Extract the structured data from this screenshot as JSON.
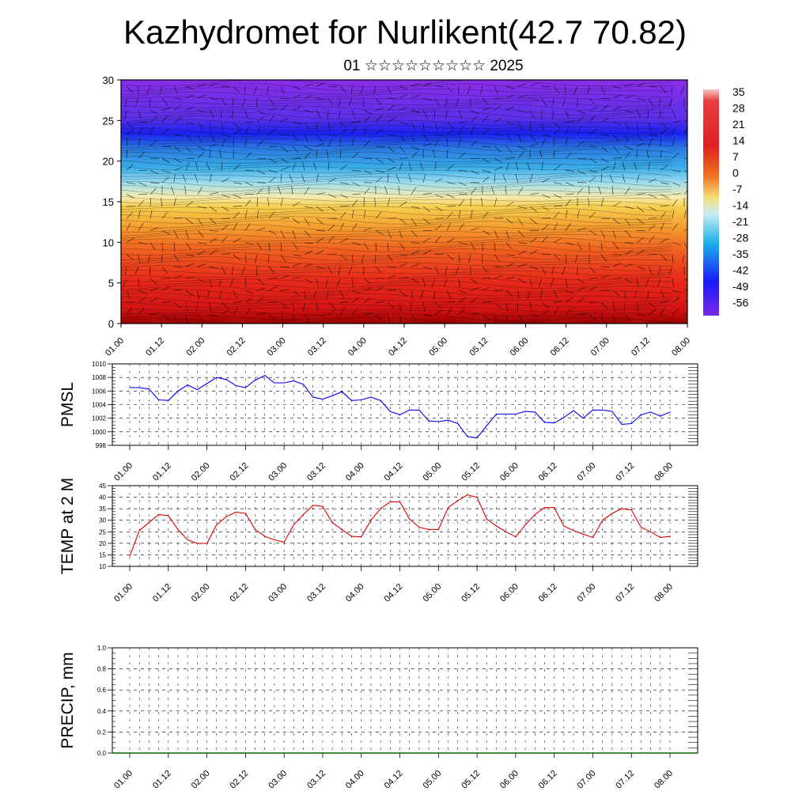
{
  "title": "Kazhydromet for Nurlikent(42.7 70.82)",
  "subtitle": "01 ☆☆☆☆☆☆☆☆☆ 2025",
  "time_labels": [
    "01.00",
    "01.12",
    "02.00",
    "02.12",
    "03.00",
    "03.12",
    "04.00",
    "04.12",
    "05.00",
    "05.12",
    "06.00",
    "06.12",
    "07.00",
    "07.12",
    "08.00"
  ],
  "colorbar": {
    "labels": [
      "35",
      "28",
      "21",
      "14",
      "7",
      "0",
      "-7",
      "-14",
      "-21",
      "-28",
      "-35",
      "-42",
      "-49",
      "-56"
    ],
    "colors": [
      "#f4c6c6",
      "#e03030",
      "#f5e07a",
      "#c8eef5",
      "#1ab0e8",
      "#1a1aff",
      "#7a28e8"
    ]
  },
  "chart_data": [
    {
      "type": "heatmap",
      "description_field": "temperature cross-section with wind barbs",
      "ylim": [
        0,
        30
      ],
      "yticks": [
        "0",
        "5",
        "10",
        "15",
        "20",
        "25",
        "30"
      ],
      "zlim": [
        -56,
        35
      ]
    },
    {
      "type": "line",
      "ylabel": "PMSL",
      "ylim": [
        998,
        1010
      ],
      "yticks": [
        "998",
        "1000",
        "1002",
        "1004",
        "1006",
        "1008",
        "1010"
      ],
      "color": "#0000ff",
      "x_step_hours": 3,
      "values": [
        1006.5,
        1006.5,
        1006.3,
        1004.7,
        1004.6,
        1006.0,
        1006.9,
        1006.2,
        1007.1,
        1008.0,
        1007.7,
        1006.8,
        1006.5,
        1007.6,
        1008.3,
        1007.2,
        1007.2,
        1007.5,
        1007.0,
        1005.1,
        1004.8,
        1005.3,
        1005.9,
        1004.6,
        1004.7,
        1005.1,
        1004.6,
        1003.0,
        1002.5,
        1003.2,
        1003.2,
        1001.6,
        1001.5,
        1001.7,
        1001.2,
        999.3,
        999.1,
        1000.9,
        1002.6,
        1002.6,
        1002.6,
        1003.0,
        1002.9,
        1001.4,
        1001.3,
        1002.1,
        1003.1,
        1002.0,
        1003.2,
        1003.2,
        1003.0,
        1001.1,
        1001.2,
        1002.5,
        1002.9,
        1002.3,
        1002.9
      ]
    },
    {
      "type": "line",
      "ylabel": "TEMP at 2 M",
      "ylim": [
        10,
        45
      ],
      "yticks": [
        "10",
        "15",
        "20",
        "25",
        "30",
        "35",
        "40",
        "45"
      ],
      "color": "#e00000",
      "x_step_hours": 3,
      "values": [
        14.5,
        25.5,
        29.0,
        32.5,
        32.0,
        26.0,
        21.5,
        20.0,
        20.0,
        28.0,
        31.5,
        33.5,
        33.0,
        26.0,
        23.0,
        21.5,
        20.5,
        28.0,
        32.5,
        36.5,
        36.0,
        29.0,
        26.0,
        23.0,
        22.8,
        30.0,
        35.0,
        38.0,
        38.0,
        30.5,
        27.0,
        26.0,
        26.0,
        35.5,
        38.5,
        41.0,
        40.0,
        30.5,
        27.5,
        25.0,
        22.8,
        28.0,
        32.5,
        35.5,
        35.5,
        27.5,
        25.5,
        24.0,
        22.5,
        30.0,
        33.0,
        35.0,
        34.5,
        27.0,
        25.0,
        22.5,
        23.0
      ]
    },
    {
      "type": "bar",
      "ylabel": "PRECIP, mm",
      "ylim": [
        0,
        1.0
      ],
      "yticks": [
        "0.0",
        "0.2",
        "0.4",
        "0.6",
        "0.8",
        "1.0"
      ],
      "color": "#006400",
      "values": []
    }
  ]
}
